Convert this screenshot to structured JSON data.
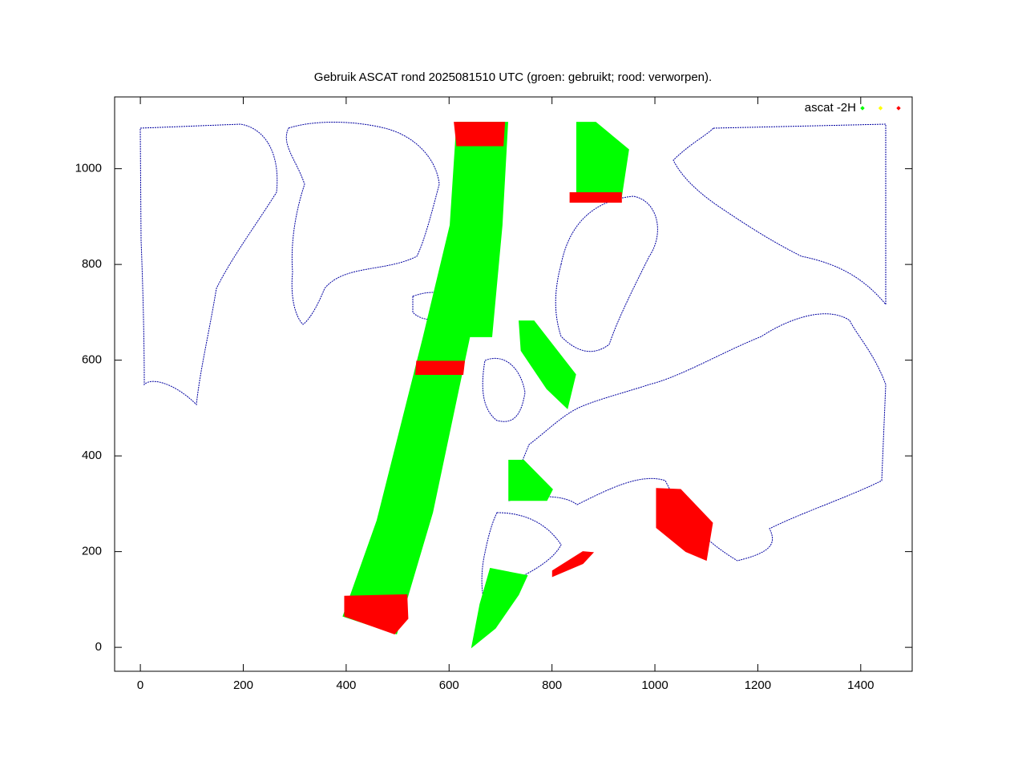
{
  "chart_data": {
    "type": "scatter",
    "title": "Gebruik ASCAT rond 2025081510 UTC (groen: gebruikt; rood: verworpen).",
    "xlim": [
      -50,
      1500
    ],
    "ylim": [
      -50,
      1150
    ],
    "xticks": [
      0,
      200,
      400,
      600,
      800,
      1000,
      1200,
      1400
    ],
    "yticks": [
      0,
      200,
      400,
      600,
      800,
      1000
    ],
    "legend": {
      "label": "ascat -2H",
      "colors": [
        "#00ff00",
        "#ffff00",
        "#ff0000"
      ],
      "position": "upper right"
    },
    "regions": [
      {
        "color": "#00ff00",
        "x": [
          615,
          714,
          703,
          683,
          640,
          568,
          522,
          498,
          394,
          460,
          550,
          602
        ],
        "y": [
          1097,
          1097,
          882,
          649,
          649,
          282,
          115,
          28,
          65,
          265,
          649,
          882
        ]
      },
      {
        "color": "#ff0000",
        "x": [
          397,
          518,
          520,
          494,
          397
        ],
        "y": [
          107,
          110,
          60,
          28,
          65
        ]
      },
      {
        "color": "#ff0000",
        "x": [
          537,
          630,
          627,
          535
        ],
        "y": [
          598,
          598,
          570,
          570
        ]
      },
      {
        "color": "#ff0000",
        "x": [
          610,
          708,
          705,
          615
        ],
        "y": [
          1097,
          1097,
          1048,
          1048
        ]
      },
      {
        "color": "#00ff00",
        "x": [
          848,
          885,
          949,
          935,
          848
        ],
        "y": [
          1097,
          1097,
          1040,
          941,
          941
        ]
      },
      {
        "color": "#ff0000",
        "x": [
          835,
          935,
          935,
          835
        ],
        "y": [
          950,
          950,
          930,
          930
        ]
      },
      {
        "color": "#00ff00",
        "x": [
          736,
          765,
          846,
          830,
          790,
          740
        ],
        "y": [
          682,
          682,
          570,
          499,
          540,
          620
        ]
      },
      {
        "color": "#00ff00",
        "x": [
          716,
          745,
          801,
          790,
          716
        ],
        "y": [
          391,
          391,
          330,
          307,
          307
        ]
      },
      {
        "color": "#00ff00",
        "x": [
          680,
          752,
          735,
          690,
          644,
          660
        ],
        "y": [
          165,
          150,
          110,
          40,
          0,
          90
        ]
      },
      {
        "color": "#ff0000",
        "x": [
          1003,
          1050,
          1112,
          1100,
          1060,
          1003
        ],
        "y": [
          332,
          330,
          260,
          182,
          200,
          250
        ]
      },
      {
        "color": "#ff0000",
        "x": [
          801,
          860,
          880,
          860,
          801
        ],
        "y": [
          148,
          175,
          198,
          200,
          160
        ]
      }
    ]
  }
}
